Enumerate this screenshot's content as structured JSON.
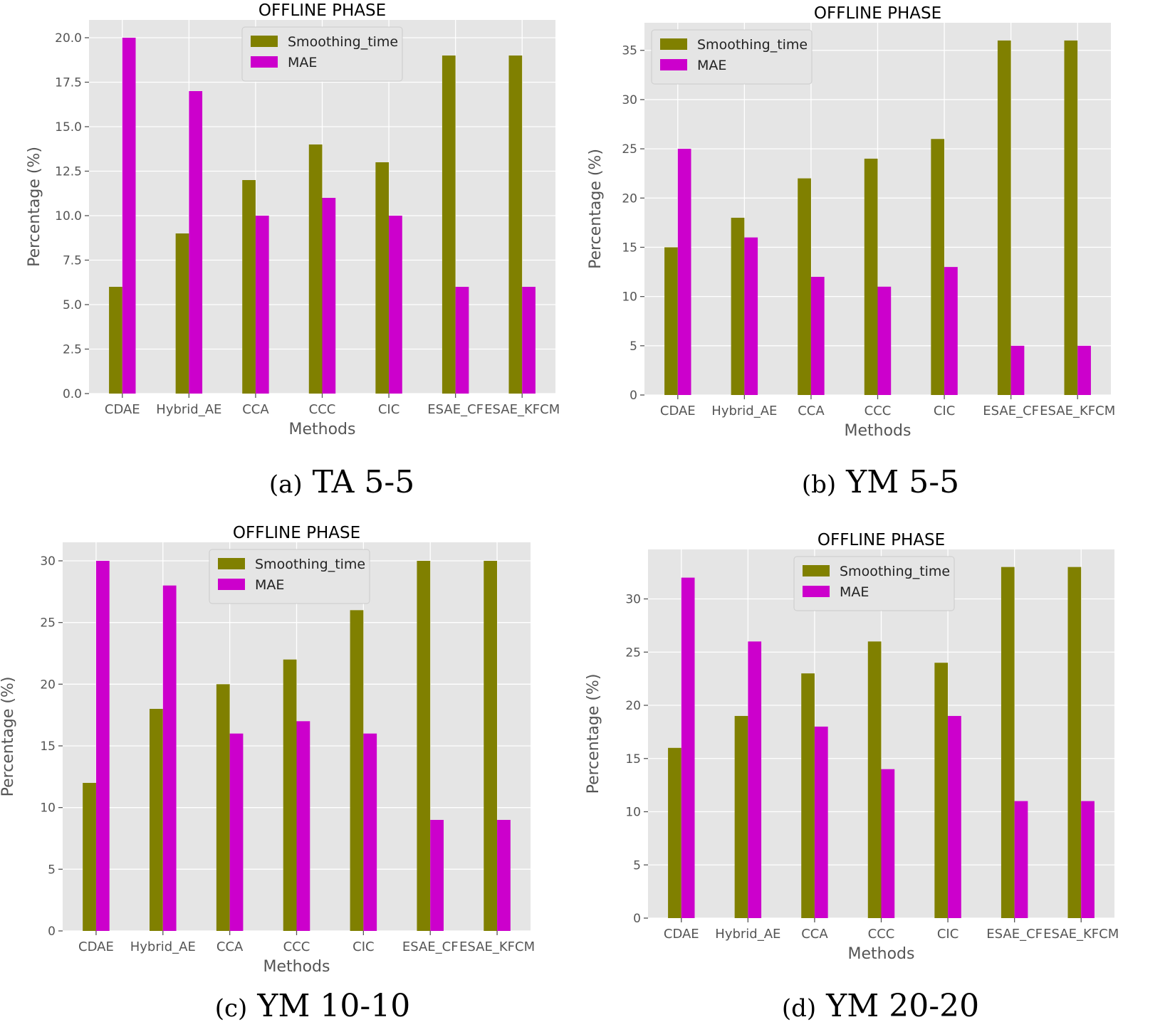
{
  "figure": {
    "captions": [
      {
        "label": "(a)",
        "text": "TA 5-5"
      },
      {
        "label": "(b)",
        "text": "YM 5-5"
      },
      {
        "label": "(c)",
        "text": "YM 10-10"
      },
      {
        "label": "(d)",
        "text": "YM 20-20"
      }
    ]
  },
  "colors": {
    "smoothing_time": "#808000",
    "mae": "#CC00CC",
    "plot_background": "#E5E5E5",
    "grid": "#FFFFFF"
  },
  "chart_data": [
    {
      "type": "bar",
      "title": "OFFLINE PHASE",
      "xlabel": "Methods",
      "ylabel": "Percentage (%)",
      "categories": [
        "CDAE",
        "Hybrid_AE",
        "CCA",
        "CCC",
        "CIC",
        "ESAE_CF",
        "ESAE_KFCM"
      ],
      "series": [
        {
          "name": "Smoothing_time",
          "values": [
            6,
            9,
            12,
            14,
            13,
            19,
            19
          ]
        },
        {
          "name": "MAE",
          "values": [
            20,
            17,
            10,
            11,
            10,
            6,
            6
          ]
        }
      ],
      "ylim": [
        0,
        21
      ],
      "yticks": [
        0.0,
        2.5,
        5.0,
        7.5,
        10.0,
        12.5,
        15.0,
        17.5,
        20.0
      ],
      "ytick_labels": [
        "0.0",
        "2.5",
        "5.0",
        "7.5",
        "10.0",
        "12.5",
        "15.0",
        "17.5",
        "20.0"
      ],
      "grid": true,
      "legend": "top-center"
    },
    {
      "type": "bar",
      "title": "OFFLINE PHASE",
      "xlabel": "Methods",
      "ylabel": "Percentage (%)",
      "categories": [
        "CDAE",
        "Hybrid_AE",
        "CCA",
        "CCC",
        "CIC",
        "ESAE_CF",
        "ESAE_KFCM"
      ],
      "series": [
        {
          "name": "Smoothing_time",
          "values": [
            15,
            18,
            22,
            24,
            26,
            36,
            36
          ]
        },
        {
          "name": "MAE",
          "values": [
            25,
            16,
            12,
            11,
            13,
            5,
            5
          ]
        }
      ],
      "ylim": [
        0,
        37.8
      ],
      "yticks": [
        0,
        5,
        10,
        15,
        20,
        25,
        30,
        35
      ],
      "ytick_labels": [
        "0",
        "5",
        "10",
        "15",
        "20",
        "25",
        "30",
        "35"
      ],
      "grid": true,
      "legend": "top-left"
    },
    {
      "type": "bar",
      "title": "OFFLINE PHASE",
      "xlabel": "Methods",
      "ylabel": "Percentage (%)",
      "categories": [
        "CDAE",
        "Hybrid_AE",
        "CCA",
        "CCC",
        "CIC",
        "ESAE_CF",
        "ESAE_KFCM"
      ],
      "series": [
        {
          "name": "Smoothing_time",
          "values": [
            12,
            18,
            20,
            22,
            26,
            30,
            30
          ]
        },
        {
          "name": "MAE",
          "values": [
            30,
            28,
            16,
            17,
            16,
            9,
            9
          ]
        }
      ],
      "ylim": [
        0,
        31.5
      ],
      "yticks": [
        0,
        5,
        10,
        15,
        20,
        25,
        30
      ],
      "ytick_labels": [
        "0",
        "5",
        "10",
        "15",
        "20",
        "25",
        "30"
      ],
      "grid": true,
      "legend": "top-center"
    },
    {
      "type": "bar",
      "title": "OFFLINE PHASE",
      "xlabel": "Methods",
      "ylabel": "Percentage (%)",
      "categories": [
        "CDAE",
        "Hybrid_AE",
        "CCA",
        "CCC",
        "CIC",
        "ESAE_CF",
        "ESAE_KFCM"
      ],
      "series": [
        {
          "name": "Smoothing_time",
          "values": [
            16,
            19,
            23,
            26,
            24,
            33,
            33
          ]
        },
        {
          "name": "MAE",
          "values": [
            32,
            26,
            18,
            14,
            19,
            11,
            11
          ]
        }
      ],
      "ylim": [
        0,
        34.65
      ],
      "yticks": [
        0,
        5,
        10,
        15,
        20,
        25,
        30
      ],
      "ytick_labels": [
        "0",
        "5",
        "10",
        "15",
        "20",
        "25",
        "30"
      ],
      "grid": true,
      "legend": "top-center"
    }
  ]
}
